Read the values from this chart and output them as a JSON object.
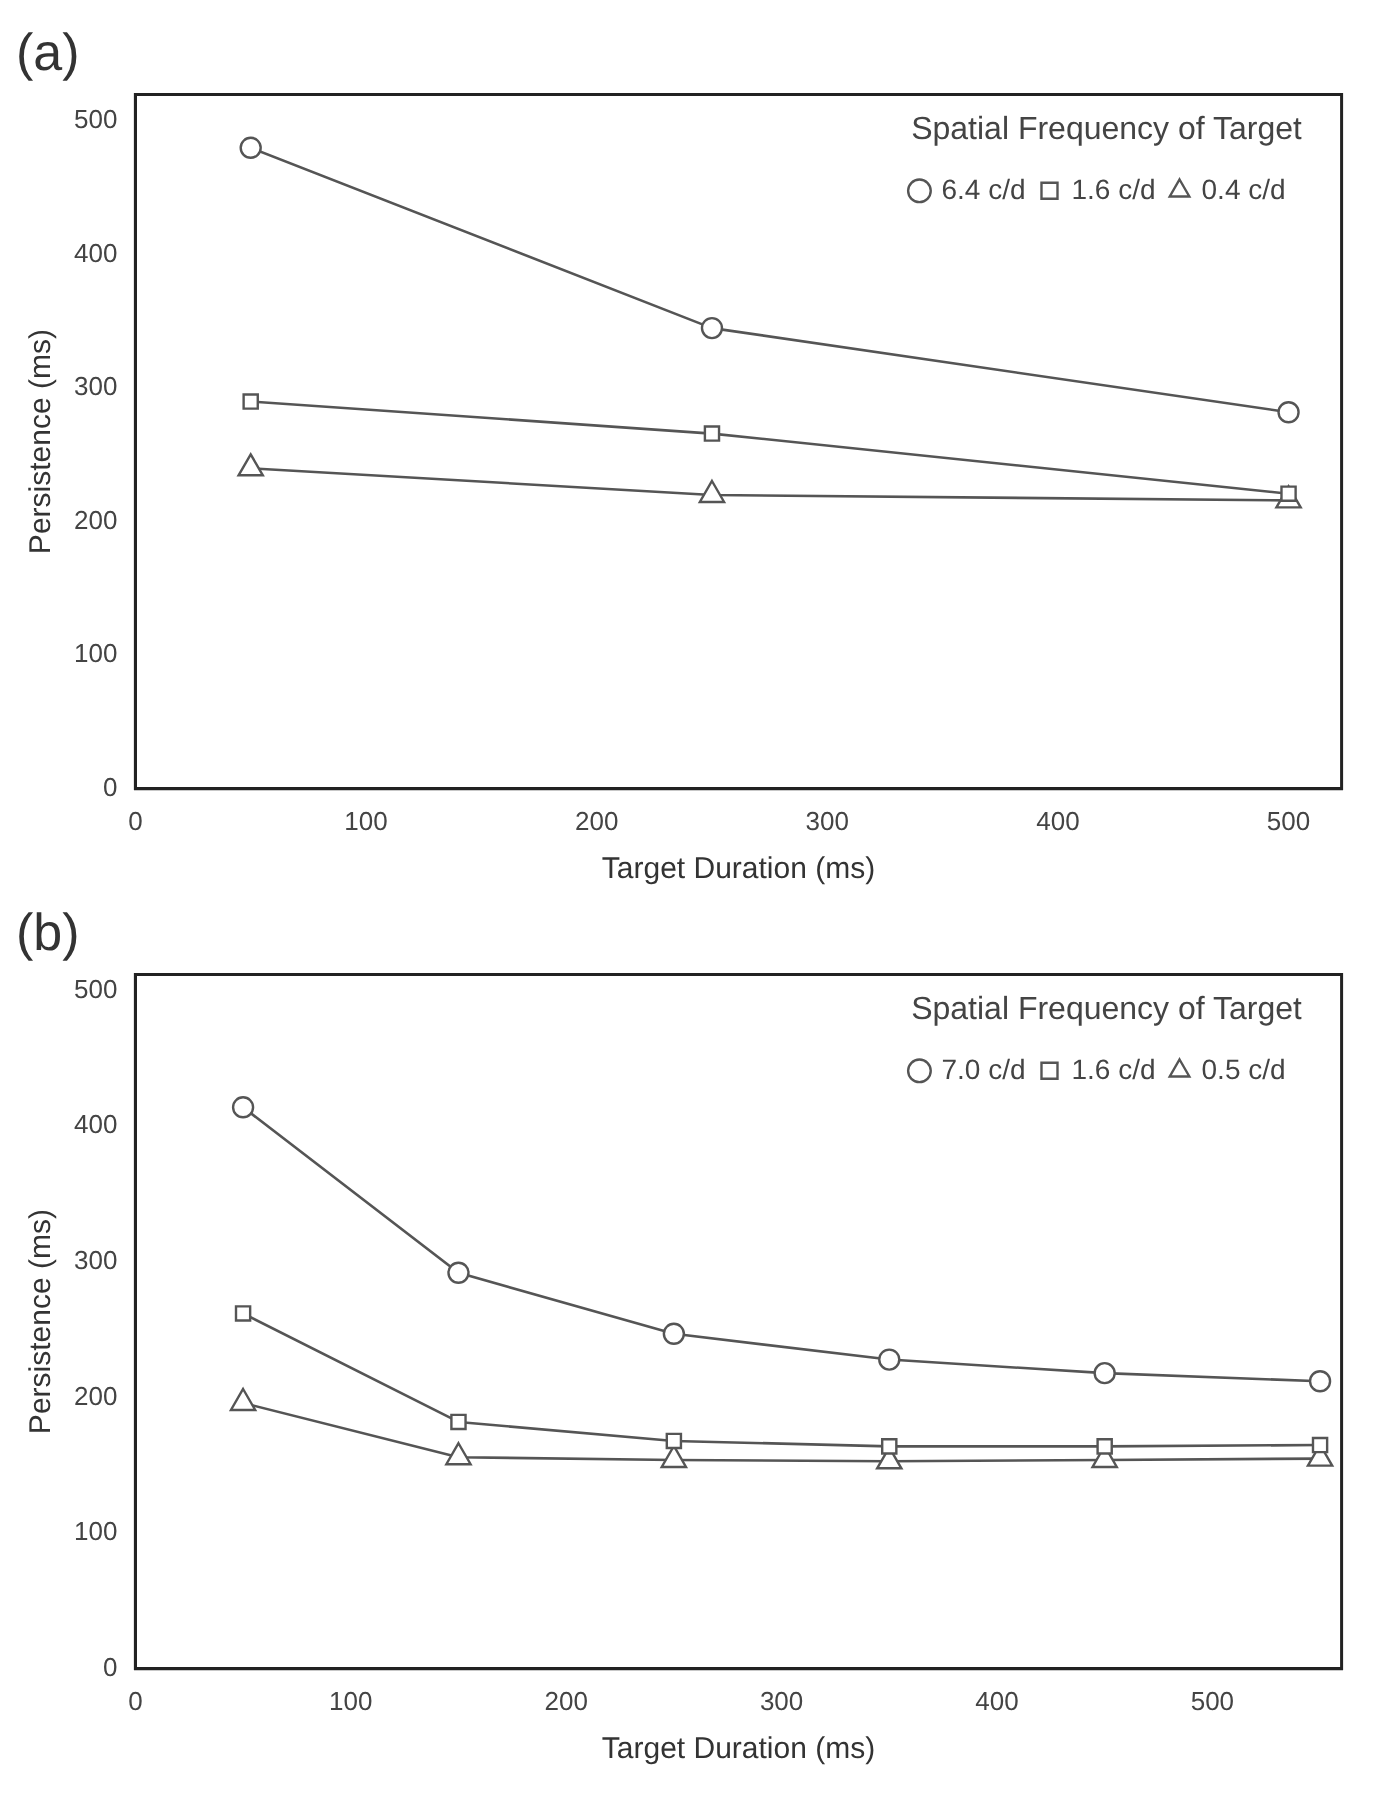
{
  "chart_data": [
    {
      "type": "line",
      "title": "(a)",
      "xlabel": "Target Duration (ms)",
      "ylabel": "Persistence (ms)",
      "legend_title": "Spatial Frequency of Target",
      "x": [
        50,
        250,
        500
      ],
      "series": [
        {
          "name": "6.4 c/d",
          "color": "#555555",
          "marker": "circle",
          "values": [
            480,
            345,
            282
          ]
        },
        {
          "name": "1.6 c/d",
          "color": "#555555",
          "marker": "square",
          "values": [
            290,
            266,
            221
          ]
        },
        {
          "name": "0.4 c/d",
          "color": "#555555",
          "marker": "triangle",
          "values": [
            240,
            220,
            216
          ]
        }
      ],
      "xlim": [
        0,
        523
      ],
      "xticks": [
        0,
        100,
        200,
        300,
        400,
        500
      ],
      "ylim": [
        0,
        520
      ],
      "yticks": [
        0,
        100,
        200,
        300,
        400,
        500
      ],
      "grid": false,
      "legend": "top right",
      "line_style": "solid"
    },
    {
      "type": "line",
      "title": "(b)",
      "xlabel": "Target Duration (ms)",
      "ylabel": "Persistence (ms)",
      "legend_title": "Spatial Frequency of Target",
      "x": [
        50,
        150,
        250,
        350,
        450,
        550
      ],
      "series": [
        {
          "name": "7.0 c/d",
          "color": "#555555",
          "marker": "circle",
          "values": [
            414,
            292,
            247,
            228,
            218,
            212
          ]
        },
        {
          "name": "1.6 c/d",
          "color": "#555555",
          "marker": "square",
          "values": [
            262,
            182,
            168,
            164,
            164,
            165
          ]
        },
        {
          "name": "0.5 c/d",
          "color": "#555555",
          "marker": "triangle",
          "values": [
            196,
            156,
            154,
            153,
            154,
            155
          ]
        }
      ],
      "xlim": [
        0,
        560
      ],
      "xticks": [
        0,
        100,
        200,
        300,
        400,
        500
      ],
      "ylim": [
        0,
        512
      ],
      "yticks": [
        0,
        100,
        200,
        300,
        400,
        500
      ],
      "grid": false,
      "legend": "top right",
      "line_style": "solid"
    }
  ]
}
